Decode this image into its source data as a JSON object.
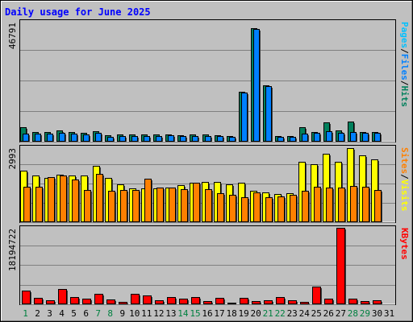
{
  "chart_data": [
    {
      "type": "bar",
      "title": "Daily usage for June 2025",
      "categories": [
        "1",
        "2",
        "3",
        "4",
        "5",
        "6",
        "7",
        "8",
        "9",
        "10",
        "11",
        "12",
        "13",
        "14",
        "15",
        "16",
        "17",
        "18",
        "19",
        "20",
        "21",
        "22",
        "23",
        "24",
        "25",
        "26",
        "27",
        "28",
        "29",
        "30",
        "31"
      ],
      "weekend_days": [
        "1",
        "7",
        "8",
        "14",
        "15",
        "21",
        "22",
        "28",
        "29"
      ],
      "ylabel": [
        "Pages",
        "Files",
        "Hits"
      ],
      "ymax_label": "46791",
      "ylim": [
        0,
        46791
      ],
      "grid": true,
      "series": [
        {
          "name": "Hits",
          "color": "#00805c",
          "values": [
            5700,
            3800,
            3900,
            4400,
            3700,
            3400,
            4100,
            2400,
            2800,
            2700,
            2800,
            2700,
            2700,
            2600,
            2800,
            2700,
            2600,
            2200,
            19600,
            44400,
            22000,
            2200,
            2200,
            5600,
            3900,
            7400,
            4300,
            7700,
            3900,
            3700,
            0
          ]
        },
        {
          "name": "Files",
          "color": "#0080ff",
          "values": [
            3200,
            3000,
            3200,
            3600,
            3000,
            2800,
            3400,
            2000,
            2300,
            2300,
            2300,
            2300,
            2400,
            2300,
            2300,
            2300,
            2200,
            2000,
            19000,
            43900,
            21600,
            1800,
            1900,
            3100,
            3300,
            4000,
            3500,
            3800,
            3400,
            3300,
            0
          ]
        },
        {
          "name": "Pages",
          "color": "#00c0ff",
          "values": [
            0,
            0,
            0,
            0,
            0,
            0,
            0,
            0,
            0,
            0,
            0,
            0,
            0,
            0,
            0,
            0,
            0,
            0,
            0,
            0,
            0,
            0,
            0,
            0,
            0,
            0,
            0,
            0,
            0,
            0,
            0
          ]
        }
      ]
    },
    {
      "type": "bar",
      "categories": [
        "1",
        "2",
        "3",
        "4",
        "5",
        "6",
        "7",
        "8",
        "9",
        "10",
        "11",
        "12",
        "13",
        "14",
        "15",
        "16",
        "17",
        "18",
        "19",
        "20",
        "21",
        "22",
        "23",
        "24",
        "25",
        "26",
        "27",
        "28",
        "29",
        "30",
        "31"
      ],
      "ylabel": [
        "Sites",
        "Visits"
      ],
      "ymax_label": "2993",
      "ylim": [
        0,
        2993
      ],
      "grid": true,
      "series": [
        {
          "name": "Visits",
          "color": "#ffff00",
          "values": [
            2050,
            1860,
            1760,
            1900,
            1860,
            1860,
            2240,
            1780,
            1500,
            1340,
            1340,
            1340,
            1390,
            1480,
            1570,
            1610,
            1610,
            1500,
            1570,
            1250,
            1180,
            1120,
            1170,
            2400,
            2320,
            2730,
            2400,
            2960,
            2660,
            2520,
            0
          ]
        },
        {
          "name": "Sites",
          "color": "#ff8000",
          "values": [
            1400,
            1400,
            1790,
            1880,
            1720,
            1300,
            1920,
            1250,
            1300,
            1300,
            1750,
            1370,
            1370,
            1310,
            1570,
            1310,
            1170,
            1090,
            1000,
            1180,
            1000,
            1020,
            1100,
            1240,
            1400,
            1390,
            1390,
            1440,
            1420,
            1280,
            0
          ]
        }
      ]
    },
    {
      "type": "bar",
      "categories": [
        "1",
        "2",
        "3",
        "4",
        "5",
        "6",
        "7",
        "8",
        "9",
        "10",
        "11",
        "12",
        "13",
        "14",
        "15",
        "16",
        "17",
        "18",
        "19",
        "20",
        "21",
        "22",
        "23",
        "24",
        "25",
        "26",
        "27",
        "28",
        "29",
        "30",
        "31"
      ],
      "ylabel": [
        "KBytes"
      ],
      "ymax_label": "18194722",
      "ylim": [
        0,
        18194722
      ],
      "grid": true,
      "series": [
        {
          "name": "KBytes",
          "color": "#ff0000",
          "values": [
            3200000,
            1500000,
            1000000,
            3600000,
            1700000,
            1400000,
            2500000,
            1200000,
            500000,
            2500000,
            2100000,
            900000,
            1800000,
            1300000,
            1700000,
            700000,
            1600000,
            400000,
            1600000,
            700000,
            900000,
            1700000,
            1000000,
            500000,
            4300000,
            1300000,
            18200000,
            1300000,
            700000,
            1000000,
            0
          ]
        }
      ]
    }
  ]
}
